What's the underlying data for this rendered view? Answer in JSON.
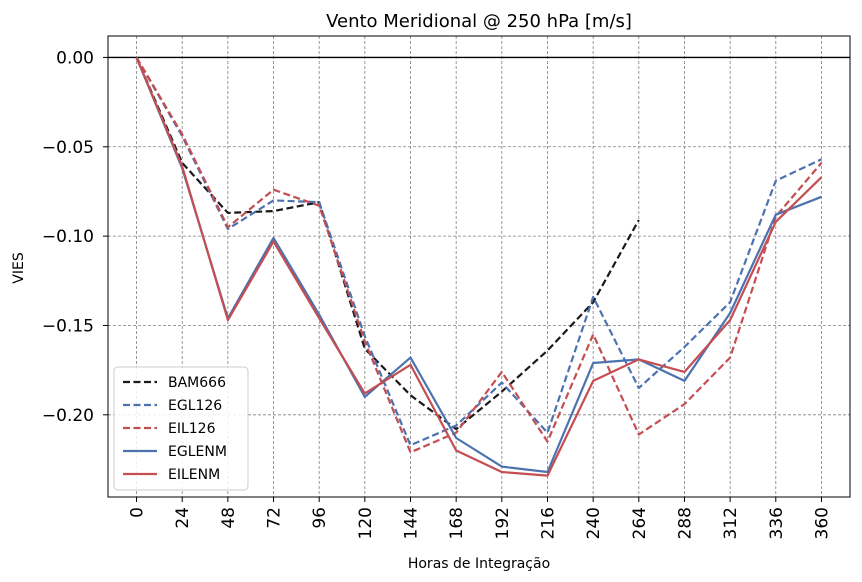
{
  "chart_data": {
    "type": "line",
    "title": "Vento Meridional @ 250 hPa [m/s]",
    "xlabel": "Horas de Integração",
    "ylabel": "VIES",
    "x": [
      0,
      24,
      48,
      72,
      96,
      120,
      144,
      168,
      192,
      216,
      240,
      264,
      288,
      312,
      336,
      360
    ],
    "x_tick_labels": [
      "0",
      "24",
      "48",
      "72",
      "96",
      "120",
      "144",
      "168",
      "192",
      "216",
      "240",
      "264",
      "288",
      "312",
      "336",
      "360"
    ],
    "y_ticks": [
      0.0,
      -0.05,
      -0.1,
      -0.15,
      -0.2
    ],
    "y_tick_labels": [
      "0.00",
      "−0.05",
      "−0.10",
      "−0.15",
      "−0.20"
    ],
    "xlim": [
      -15,
      375
    ],
    "ylim": [
      -0.246,
      0.012
    ],
    "grid": true,
    "zero_line": 0,
    "legend_position": "lower-left",
    "series": [
      {
        "name": "BAM666",
        "color": "#1a1a1a",
        "dash": "dashed",
        "values": [
          0.0,
          -0.059,
          -0.087,
          -0.086,
          -0.081,
          -0.163,
          -0.189,
          -0.208,
          -0.187,
          -0.164,
          -0.137,
          -0.091,
          null,
          null,
          null,
          null
        ]
      },
      {
        "name": "EGL126",
        "color": "#4c72b0",
        "dash": "dashed",
        "values": [
          0.0,
          -0.044,
          -0.096,
          -0.08,
          -0.081,
          -0.156,
          -0.217,
          -0.206,
          -0.182,
          -0.21,
          -0.134,
          -0.185,
          -0.162,
          -0.137,
          -0.069,
          -0.057
        ]
      },
      {
        "name": "EIL126",
        "color": "#c44e52",
        "dash": "dashed",
        "values": [
          0.0,
          -0.043,
          -0.095,
          -0.074,
          -0.083,
          -0.159,
          -0.221,
          -0.21,
          -0.176,
          -0.215,
          -0.155,
          -0.211,
          -0.194,
          -0.168,
          -0.089,
          -0.059
        ]
      },
      {
        "name": "EGLENM",
        "color": "#4c72b0",
        "dash": "solid",
        "values": [
          0.0,
          -0.062,
          -0.146,
          -0.101,
          -0.144,
          -0.19,
          -0.168,
          -0.213,
          -0.229,
          -0.232,
          -0.171,
          -0.169,
          -0.181,
          -0.143,
          -0.088,
          -0.078
        ]
      },
      {
        "name": "EILENM",
        "color": "#c44e52",
        "dash": "solid",
        "values": [
          0.0,
          -0.061,
          -0.147,
          -0.103,
          -0.146,
          -0.188,
          -0.172,
          -0.22,
          -0.232,
          -0.234,
          -0.181,
          -0.169,
          -0.176,
          -0.147,
          -0.092,
          -0.067
        ]
      }
    ]
  }
}
